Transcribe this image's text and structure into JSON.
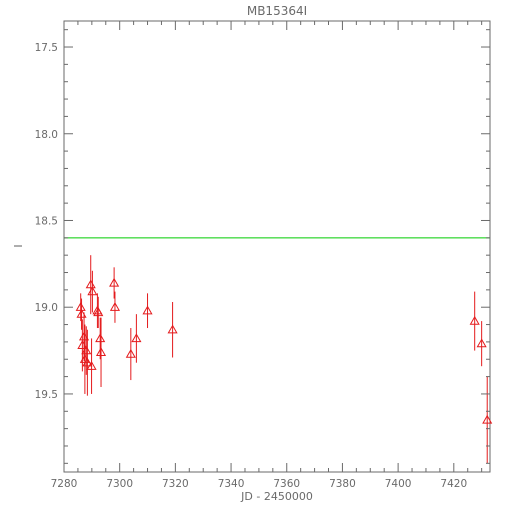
{
  "chart_data": {
    "type": "scatter",
    "title": "MB15364I",
    "xlabel": "JD - 2450000",
    "ylabel": "I",
    "xlim": [
      7280,
      7433
    ],
    "ylim": [
      19.95,
      17.35
    ],
    "y_inverted": true,
    "grid": false,
    "legend": "none",
    "x_ticks": [
      7280,
      7300,
      7320,
      7340,
      7360,
      7380,
      7400,
      7420
    ],
    "x_tick_labels": [
      "7280",
      "7300",
      "7320",
      "7340",
      "7360",
      "7380",
      "7400",
      "7420"
    ],
    "y_ticks": [
      17.5,
      18.0,
      18.5,
      19.0,
      19.5
    ],
    "y_tick_labels": [
      "17.5",
      "18.0",
      "18.5",
      "19.0",
      "19.5"
    ],
    "reference_line": {
      "y": 18.6,
      "color": "#00cc00"
    },
    "series": [
      {
        "marker": "triangle-open",
        "color": "#e41a1c",
        "points": [
          {
            "x": 7286.0,
            "y": 19.0,
            "err": 0.08
          },
          {
            "x": 7286.3,
            "y": 19.04,
            "err": 0.09
          },
          {
            "x": 7286.6,
            "y": 19.22,
            "err": 0.15
          },
          {
            "x": 7287.2,
            "y": 19.17,
            "err": 0.14
          },
          {
            "x": 7287.5,
            "y": 19.3,
            "err": 0.2
          },
          {
            "x": 7288.0,
            "y": 19.25,
            "err": 0.14
          },
          {
            "x": 7288.4,
            "y": 19.32,
            "err": 0.19
          },
          {
            "x": 7289.6,
            "y": 18.87,
            "err": 0.17
          },
          {
            "x": 7289.9,
            "y": 19.34,
            "err": 0.16
          },
          {
            "x": 7290.2,
            "y": 18.91,
            "err": 0.12
          },
          {
            "x": 7292.0,
            "y": 19.02,
            "err": 0.1
          },
          {
            "x": 7292.3,
            "y": 19.03,
            "err": 0.09
          },
          {
            "x": 7293.0,
            "y": 19.18,
            "err": 0.12
          },
          {
            "x": 7293.3,
            "y": 19.26,
            "err": 0.2
          },
          {
            "x": 7298.0,
            "y": 18.86,
            "err": 0.09
          },
          {
            "x": 7298.3,
            "y": 19.0,
            "err": 0.09
          },
          {
            "x": 7304.0,
            "y": 19.27,
            "err": 0.15
          },
          {
            "x": 7306.0,
            "y": 19.18,
            "err": 0.14
          },
          {
            "x": 7310.0,
            "y": 19.02,
            "err": 0.1
          },
          {
            "x": 7319.0,
            "y": 19.13,
            "err": 0.16
          },
          {
            "x": 7427.5,
            "y": 19.08,
            "err": 0.17
          },
          {
            "x": 7430.0,
            "y": 19.21,
            "err": 0.13
          },
          {
            "x": 7432.0,
            "y": 19.65,
            "err": 0.25
          }
        ]
      }
    ]
  }
}
